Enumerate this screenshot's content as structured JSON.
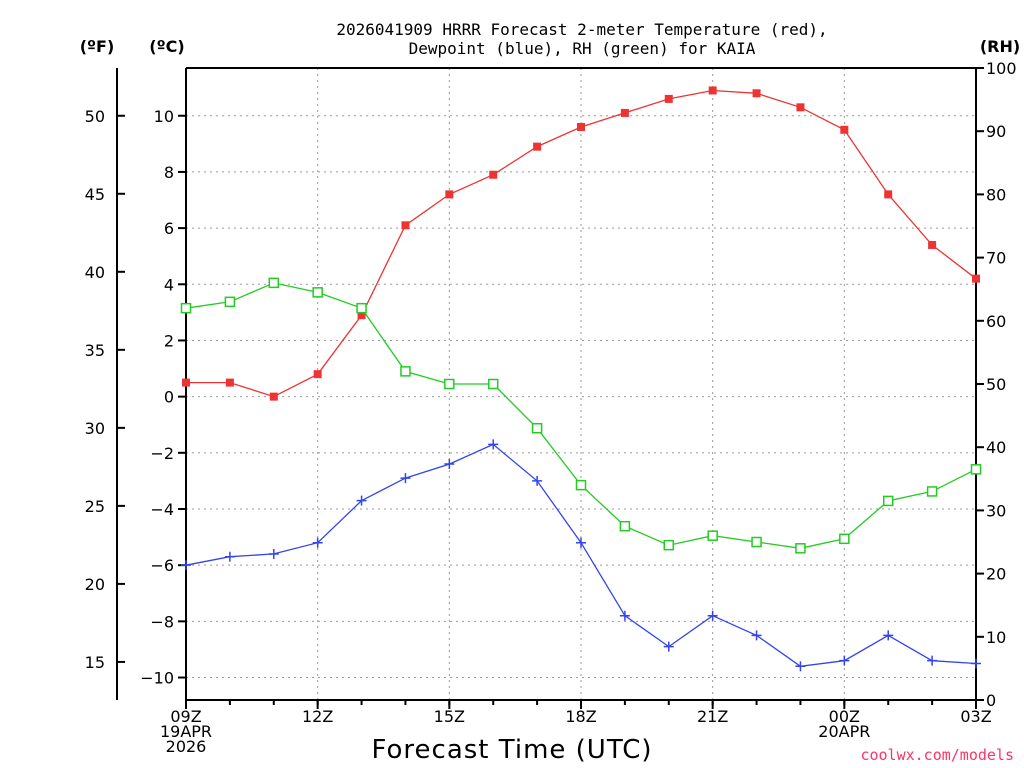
{
  "chart_data": {
    "type": "line",
    "title_line1": "2026041909 HRRR Forecast 2-meter Temperature (red),",
    "title_line2": "Dewpoint (blue), RH (green) for KAIA",
    "xlabel": "Forecast Time (UTC)",
    "credit": "coolwx.com/models",
    "unit_f": "(ºF)",
    "unit_c": "(ºC)",
    "unit_rh": "(RH)",
    "x_hours": [
      0,
      1,
      2,
      3,
      4,
      5,
      6,
      7,
      8,
      9,
      10,
      11,
      12,
      13,
      14,
      15,
      16,
      17,
      18
    ],
    "x_ticks": [
      {
        "hour": 0,
        "lines": [
          "09Z",
          "19APR",
          "2026"
        ]
      },
      {
        "hour": 3,
        "lines": [
          "12Z"
        ]
      },
      {
        "hour": 6,
        "lines": [
          "15Z"
        ]
      },
      {
        "hour": 9,
        "lines": [
          "18Z"
        ]
      },
      {
        "hour": 12,
        "lines": [
          "21Z"
        ]
      },
      {
        "hour": 15,
        "lines": [
          "00Z",
          "20APR"
        ]
      },
      {
        "hour": 18,
        "lines": [
          "03Z"
        ]
      }
    ],
    "ylim_c": [
      -10.8,
      11.7
    ],
    "yticks_c": [
      -10,
      -8,
      -6,
      -4,
      -2,
      0,
      2,
      4,
      6,
      8,
      10
    ],
    "yticks_f": [
      15,
      20,
      25,
      30,
      35,
      40,
      45,
      50
    ],
    "ylim_rh": [
      0,
      100
    ],
    "yticks_rh": [
      0,
      10,
      20,
      30,
      40,
      50,
      60,
      70,
      80,
      90,
      100
    ],
    "series": [
      {
        "name": "2-meter Temperature",
        "color": "#ee3333",
        "marker": "filled-square",
        "axis": "C",
        "values": [
          0.5,
          0.5,
          0.0,
          0.8,
          2.9,
          6.1,
          7.2,
          7.9,
          8.9,
          9.6,
          10.1,
          10.6,
          10.9,
          10.8,
          10.3,
          9.5,
          7.2,
          5.4,
          4.2
        ]
      },
      {
        "name": "Dewpoint",
        "color": "#3344ee",
        "marker": "plus",
        "axis": "C",
        "values": [
          -6.0,
          -5.7,
          -5.6,
          -5.2,
          -3.7,
          -2.9,
          -2.4,
          -1.7,
          -3.0,
          -5.2,
          -7.8,
          -8.9,
          -7.8,
          -8.5,
          -9.6,
          -9.4,
          -8.5,
          -9.4,
          -9.5
        ]
      },
      {
        "name": "RH",
        "color": "#22cc22",
        "marker": "open-square",
        "axis": "RH",
        "values": [
          62,
          63,
          66,
          64.5,
          62,
          52,
          50,
          50,
          43,
          34,
          27.5,
          24.5,
          26,
          25,
          24,
          25.5,
          31.5,
          33,
          36.5
        ]
      }
    ]
  }
}
